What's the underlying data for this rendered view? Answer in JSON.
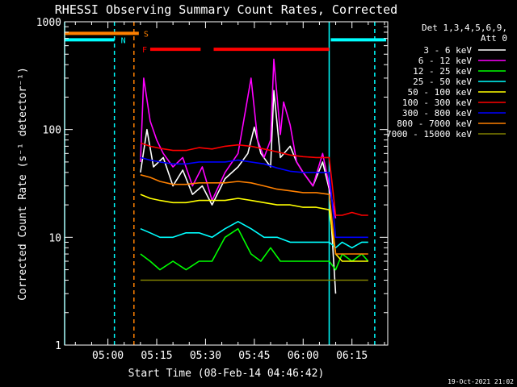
{
  "chart_data": {
    "type": "line",
    "title": "RHESSI Observing Summary Count Rates, Corrected",
    "xlabel": "Start Time (08-Feb-14 04:46:42)",
    "ylabel": "Corrected Count Rate (s⁻¹ detector⁻¹)",
    "y_scale": "log",
    "ylim": [
      1,
      1000
    ],
    "xlim": [
      "04:46:42",
      "06:26:00"
    ],
    "x_ticks": [
      "05:00",
      "05:15",
      "05:30",
      "05:45",
      "06:00",
      "06:15"
    ],
    "y_ticks": [
      "1",
      "10",
      "100",
      "1000"
    ],
    "legend": {
      "header_line1": "Det 1,3,4,5,6,9,",
      "header_line2": "Att 0",
      "placement": "top-right outside"
    },
    "series": [
      {
        "name": "3 - 6 keV",
        "color": "#ffffff",
        "x": [
          "05:10",
          "05:12",
          "05:14",
          "05:17",
          "05:20",
          "05:23",
          "05:26",
          "05:29",
          "05:32",
          "05:36",
          "05:40",
          "05:43",
          "05:45",
          "05:47",
          "05:50",
          "05:51",
          "05:53",
          "05:56",
          "05:58",
          "06:00",
          "06:03",
          "06:06",
          "06:08",
          "06:10"
        ],
        "values": [
          40,
          100,
          45,
          55,
          30,
          42,
          25,
          30,
          20,
          35,
          45,
          60,
          105,
          60,
          45,
          230,
          55,
          70,
          50,
          40,
          30,
          50,
          28,
          3
        ]
      },
      {
        "name": "6 - 12 keV",
        "color": "#ff00ff",
        "x": [
          "05:10",
          "05:11",
          "05:13",
          "05:15",
          "05:17",
          "05:20",
          "05:23",
          "05:26",
          "05:29",
          "05:32",
          "05:36",
          "05:40",
          "05:44",
          "05:46",
          "05:48",
          "05:50",
          "05:51",
          "05:53",
          "05:54",
          "05:56",
          "05:58",
          "06:00",
          "06:03",
          "06:06",
          "06:08",
          "06:10"
        ],
        "values": [
          50,
          300,
          120,
          80,
          60,
          45,
          55,
          30,
          45,
          22,
          40,
          60,
          300,
          80,
          55,
          80,
          450,
          90,
          180,
          110,
          50,
          40,
          30,
          60,
          30,
          15
        ]
      },
      {
        "name": "12 - 25 keV",
        "color": "#00ff00",
        "x": [
          "05:10",
          "05:13",
          "05:16",
          "05:20",
          "05:24",
          "05:28",
          "05:32",
          "05:36",
          "05:40",
          "05:44",
          "05:47",
          "05:50",
          "05:53",
          "05:56",
          "06:00",
          "06:04",
          "06:08",
          "06:10",
          "06:12",
          "06:15",
          "06:18",
          "06:20"
        ],
        "values": [
          7,
          6,
          5,
          6,
          5,
          6,
          6,
          10,
          12,
          7,
          6,
          8,
          6,
          6,
          6,
          6,
          6,
          5,
          7,
          6,
          7,
          6
        ]
      },
      {
        "name": "25 - 50 keV",
        "color": "#00ffff",
        "x": [
          "05:10",
          "05:13",
          "05:16",
          "05:20",
          "05:24",
          "05:28",
          "05:32",
          "05:36",
          "05:40",
          "05:44",
          "05:48",
          "05:52",
          "05:56",
          "06:00",
          "06:04",
          "06:08",
          "06:10",
          "06:12",
          "06:15",
          "06:18",
          "06:20"
        ],
        "values": [
          12,
          11,
          10,
          10,
          11,
          11,
          10,
          12,
          14,
          12,
          10,
          10,
          9,
          9,
          9,
          9,
          8,
          9,
          8,
          9,
          9
        ]
      },
      {
        "name": "50 - 100 keV",
        "color": "#ffff00",
        "x": [
          "05:10",
          "05:13",
          "05:16",
          "05:20",
          "05:24",
          "05:28",
          "05:32",
          "05:36",
          "05:40",
          "05:44",
          "05:48",
          "05:52",
          "05:56",
          "06:00",
          "06:04",
          "06:08",
          "06:10",
          "06:12",
          "06:15",
          "06:18",
          "06:20"
        ],
        "values": [
          25,
          23,
          22,
          21,
          21,
          22,
          22,
          22,
          23,
          22,
          21,
          20,
          20,
          19,
          19,
          18,
          7,
          6,
          6,
          6,
          6
        ]
      },
      {
        "name": "100 - 300 keV",
        "color": "#ff0000",
        "x": [
          "05:10",
          "05:13",
          "05:16",
          "05:20",
          "05:24",
          "05:28",
          "05:32",
          "05:36",
          "05:40",
          "05:44",
          "05:48",
          "05:52",
          "05:56",
          "06:00",
          "06:04",
          "06:08",
          "06:10",
          "06:12",
          "06:15",
          "06:18",
          "06:20"
        ],
        "values": [
          75,
          70,
          67,
          64,
          64,
          68,
          66,
          70,
          72,
          70,
          66,
          62,
          58,
          56,
          55,
          55,
          16,
          16,
          17,
          16,
          16
        ]
      },
      {
        "name": "300 - 800 keV",
        "color": "#0000ff",
        "x": [
          "05:10",
          "05:13",
          "05:16",
          "05:20",
          "05:24",
          "05:28",
          "05:32",
          "05:36",
          "05:40",
          "05:44",
          "05:48",
          "05:52",
          "05:56",
          "06:00",
          "06:04",
          "06:08",
          "06:10",
          "06:12",
          "06:15",
          "06:18",
          "06:20"
        ],
        "values": [
          55,
          52,
          50,
          48,
          48,
          50,
          50,
          50,
          52,
          50,
          48,
          44,
          41,
          40,
          40,
          40,
          10,
          10,
          10,
          10,
          10
        ]
      },
      {
        "name": "800 - 7000 keV",
        "color": "#ff8000",
        "x": [
          "05:10",
          "05:13",
          "05:16",
          "05:20",
          "05:24",
          "05:28",
          "05:32",
          "05:36",
          "05:40",
          "05:44",
          "05:48",
          "05:52",
          "05:56",
          "06:00",
          "06:04",
          "06:08",
          "06:10",
          "06:12",
          "06:15",
          "06:18",
          "06:20"
        ],
        "values": [
          38,
          36,
          33,
          31,
          31,
          32,
          32,
          32,
          33,
          32,
          30,
          28,
          27,
          26,
          26,
          25,
          7,
          7,
          7,
          7,
          7
        ]
      },
      {
        "name": "7000 - 15000 keV",
        "color": "#808000",
        "x": [
          "05:10",
          "05:14",
          "05:18",
          "05:22",
          "05:26",
          "05:30",
          "05:34",
          "05:38",
          "05:42",
          "05:46",
          "05:50",
          "05:54",
          "05:58",
          "06:02",
          "06:06",
          "06:10",
          "06:14",
          "06:18",
          "06:20"
        ],
        "values": [
          4,
          4,
          4,
          4,
          4,
          4,
          4,
          4,
          4,
          4,
          4,
          4,
          4,
          4,
          4,
          4,
          4,
          4,
          4
        ]
      }
    ],
    "flag_rows": [
      {
        "label": "S",
        "color": "#ff8000",
        "level_value": 780,
        "segments": [
          [
            "04:46:42",
            "05:09:30"
          ]
        ]
      },
      {
        "label": "N",
        "color": "#00ffff",
        "level_value": 680,
        "segments": [
          [
            "04:46:42",
            "05:02:00"
          ],
          [
            "06:08:30",
            "06:25:30"
          ]
        ]
      },
      {
        "label": "F",
        "color": "#ff0000",
        "level_value": 555,
        "segments": [
          [
            "05:13:00",
            "05:28:30"
          ],
          [
            "05:32:30",
            "06:08:00"
          ]
        ]
      }
    ],
    "vertical_markers": [
      {
        "x": "04:46:42",
        "color": "#00ffff",
        "style": "solid"
      },
      {
        "x": "05:02:00",
        "color": "#00ffff",
        "style": "dashed"
      },
      {
        "x": "05:08:00",
        "color": "#ff8000",
        "style": "dashed"
      },
      {
        "x": "06:08:00",
        "color": "#00ffff",
        "style": "solid"
      },
      {
        "x": "06:22:00",
        "color": "#00ffff",
        "style": "dashed"
      }
    ],
    "footer_date": "19-Oct-2021 21:02",
    "colors": {
      "background": "#000000",
      "axes": "#ffffff"
    }
  }
}
